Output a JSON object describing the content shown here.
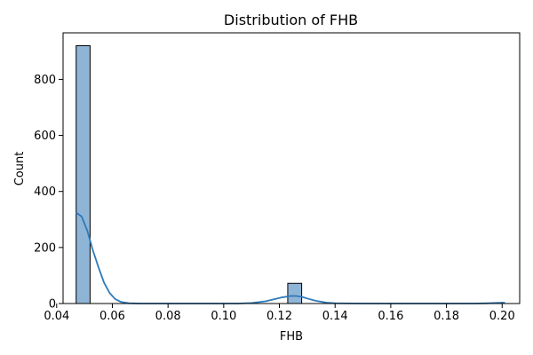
{
  "chart_data": {
    "type": "histogram",
    "title": "Distribution of FHB",
    "xlabel": "FHB",
    "ylabel": "Count",
    "xlim": [
      0.0423,
      0.2063
    ],
    "ylim": [
      0,
      966
    ],
    "xticks": [
      0.04,
      0.06,
      0.08,
      0.1,
      0.12,
      0.14,
      0.16,
      0.18,
      0.2
    ],
    "xtick_labels": [
      "0.04",
      "0.06",
      "0.08",
      "0.10",
      "0.12",
      "0.14",
      "0.16",
      "0.18",
      "0.20"
    ],
    "yticks": [
      0,
      200,
      400,
      600,
      800
    ],
    "ytick_labels": [
      "0",
      "200",
      "400",
      "600",
      "800"
    ],
    "grid": false,
    "bin_start": 0.047,
    "bin_width": 0.005,
    "bins": [
      {
        "x0": 0.047,
        "x1": 0.052,
        "count": 920
      },
      {
        "x0": 0.123,
        "x1": 0.128,
        "count": 72
      }
    ],
    "kde": {
      "x": [
        0.047,
        0.049,
        0.051,
        0.053,
        0.055,
        0.057,
        0.059,
        0.061,
        0.063,
        0.066,
        0.07,
        0.08,
        0.09,
        0.1,
        0.105,
        0.11,
        0.115,
        0.118,
        0.121,
        0.124,
        0.126,
        0.128,
        0.13,
        0.133,
        0.137,
        0.14,
        0.15,
        0.17,
        0.19,
        0.195,
        0.2,
        0.201
      ],
      "y": [
        325,
        310,
        260,
        190,
        130,
        75,
        38,
        16,
        6,
        1,
        0,
        0,
        0,
        0,
        0,
        2,
        8,
        15,
        22,
        27,
        27,
        24,
        18,
        10,
        3,
        1,
        0,
        0,
        0,
        1,
        3,
        3
      ]
    },
    "colors": {
      "bar_fill": "#8fb5d6",
      "bar_edge": "#000000",
      "kde_line": "#2f7ab9"
    }
  }
}
